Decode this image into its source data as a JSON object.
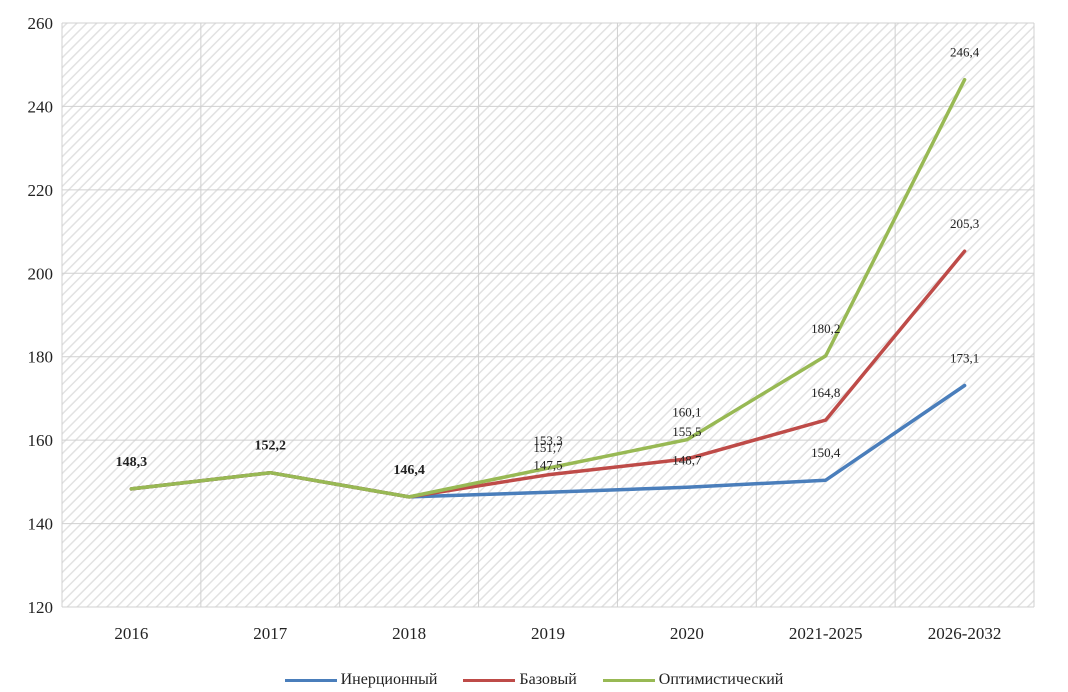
{
  "chart_data": {
    "type": "line",
    "categories": [
      "2016",
      "2017",
      "2018",
      "2019",
      "2020",
      "2021-2025",
      "2026-2032"
    ],
    "ylim": [
      120,
      260
    ],
    "yticks": [
      120,
      140,
      160,
      180,
      200,
      220,
      240,
      260
    ],
    "grid": true,
    "legend_position": "bottom",
    "series": [
      {
        "name": "Инерционный",
        "color": "#4a7ebb",
        "values": [
          148.3,
          152.2,
          146.4,
          147.5,
          148.7,
          150.4,
          173.1
        ],
        "labels": [
          "",
          "",
          "",
          "147,5",
          "148,7",
          "150,4",
          "173,1"
        ]
      },
      {
        "name": "Базовый",
        "color": "#be4b48",
        "values": [
          148.3,
          152.2,
          146.4,
          151.7,
          155.5,
          164.8,
          205.3
        ],
        "labels": [
          "",
          "",
          "",
          "151,7",
          "155,5",
          "164,8",
          "205,3"
        ]
      },
      {
        "name": "Оптимистический",
        "color": "#98b954",
        "values": [
          148.3,
          152.2,
          146.4,
          153.3,
          160.1,
          180.2,
          246.4
        ],
        "labels": [
          "148,3",
          "152,2",
          "146,4",
          "153,3",
          "160,1",
          "180,2",
          "246,4"
        ]
      }
    ]
  }
}
